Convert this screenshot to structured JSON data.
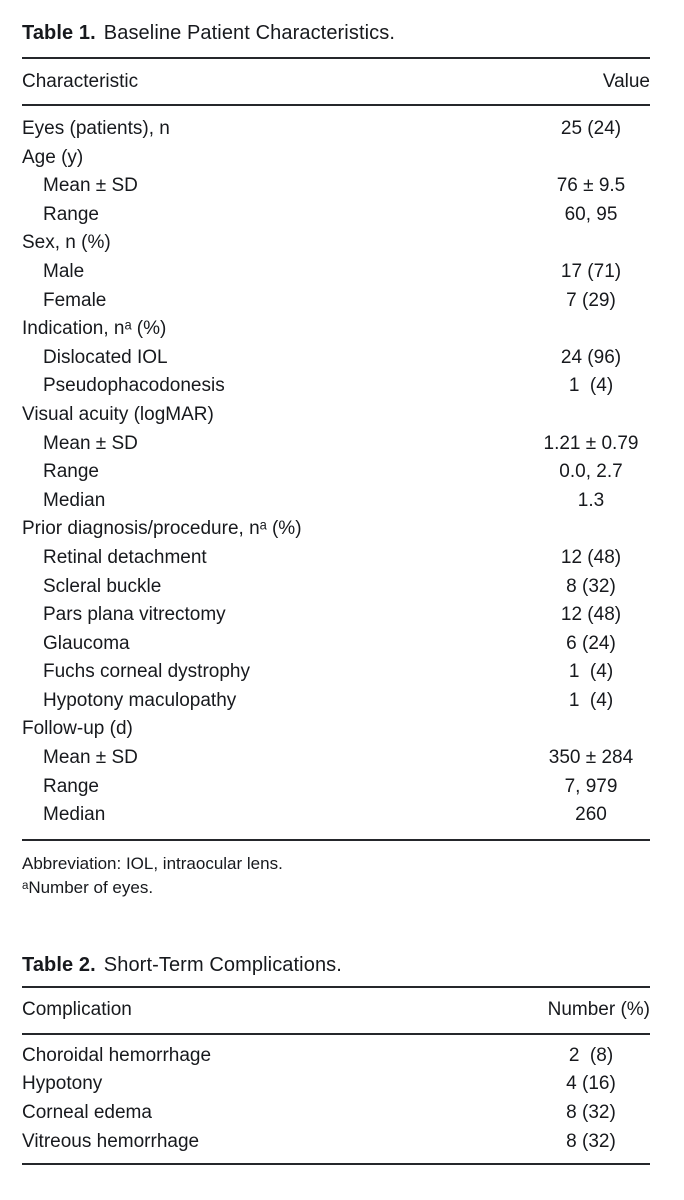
{
  "page": {
    "background": "#ffffff",
    "text_color": "#17191d",
    "rule_color": "#25272b"
  },
  "table1": {
    "title_label": "Table 1.",
    "title_text": "Baseline Patient Characteristics.",
    "header": {
      "characteristic": "Characteristic",
      "value": "Value"
    },
    "rows": [
      {
        "label": "Eyes (patients), n",
        "value": "25 (24)",
        "indent": false
      },
      {
        "label": "Age (y)",
        "value": "",
        "indent": false
      },
      {
        "label": "Mean ± SD",
        "value": "76 ± 9.5",
        "indent": true
      },
      {
        "label": "Range",
        "value": "60, 95",
        "indent": true
      },
      {
        "label": "Sex, n (%)",
        "value": "",
        "indent": false
      },
      {
        "label": "Male",
        "value": "17 (71)",
        "indent": true
      },
      {
        "label": "Female",
        "value": "7 (29)",
        "indent": true
      },
      {
        "label": "Indication, nᵃ (%)",
        "value": "",
        "indent": false
      },
      {
        "label": "Dislocated IOL",
        "value": "24 (96)",
        "indent": true
      },
      {
        "label": "Pseudophacodonesis",
        "value": "1  (4)",
        "indent": true
      },
      {
        "label": "Visual acuity (logMAR)",
        "value": "",
        "indent": false
      },
      {
        "label": "Mean ± SD",
        "value": "1.21 ± 0.79",
        "indent": true
      },
      {
        "label": "Range",
        "value": "0.0, 2.7",
        "indent": true
      },
      {
        "label": "Median",
        "value": "1.3",
        "indent": true
      },
      {
        "label": "Prior diagnosis/procedure, nᵃ (%)",
        "value": "",
        "indent": false
      },
      {
        "label": "Retinal detachment",
        "value": "12 (48)",
        "indent": true
      },
      {
        "label": "Scleral buckle",
        "value": "8 (32)",
        "indent": true
      },
      {
        "label": "Pars plana vitrectomy",
        "value": "12 (48)",
        "indent": true
      },
      {
        "label": "Glaucoma",
        "value": "6 (24)",
        "indent": true
      },
      {
        "label": "Fuchs corneal dystrophy",
        "value": "1  (4)",
        "indent": true
      },
      {
        "label": "Hypotony maculopathy",
        "value": "1  (4)",
        "indent": true
      },
      {
        "label": "Follow-up (d)",
        "value": "",
        "indent": false
      },
      {
        "label": "Mean ± SD",
        "value": "350 ± 284",
        "indent": true
      },
      {
        "label": "Range",
        "value": "7, 979",
        "indent": true
      },
      {
        "label": "Median",
        "value": "260",
        "indent": true
      }
    ],
    "footnotes": [
      "Abbreviation: IOL, intraocular lens.",
      "ᵃNumber of eyes."
    ]
  },
  "table2": {
    "title_label": "Table 2.",
    "title_text": "Short-Term Complications.",
    "header": {
      "characteristic": "Complication",
      "value": "Number (%)"
    },
    "rows": [
      {
        "label": "Choroidal hemorrhage",
        "value": "2  (8)",
        "indent": false
      },
      {
        "label": "Hypotony",
        "value": "4 (16)",
        "indent": false
      },
      {
        "label": "Corneal edema",
        "value": "8 (32)",
        "indent": false
      },
      {
        "label": "Vitreous hemorrhage",
        "value": "8 (32)",
        "indent": false
      }
    ]
  }
}
